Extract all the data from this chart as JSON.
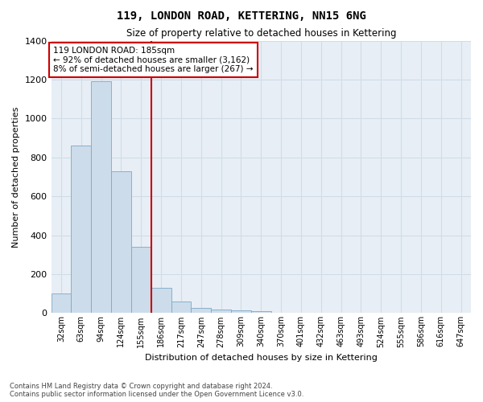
{
  "title": "119, LONDON ROAD, KETTERING, NN15 6NG",
  "subtitle": "Size of property relative to detached houses in Kettering",
  "xlabel": "Distribution of detached houses by size in Kettering",
  "ylabel": "Number of detached properties",
  "categories": [
    "32sqm",
    "63sqm",
    "94sqm",
    "124sqm",
    "155sqm",
    "186sqm",
    "217sqm",
    "247sqm",
    "278sqm",
    "309sqm",
    "340sqm",
    "370sqm",
    "401sqm",
    "432sqm",
    "463sqm",
    "493sqm",
    "524sqm",
    "555sqm",
    "586sqm",
    "616sqm",
    "647sqm"
  ],
  "values": [
    100,
    860,
    1190,
    730,
    340,
    130,
    60,
    28,
    20,
    15,
    10,
    0,
    0,
    0,
    0,
    0,
    0,
    0,
    0,
    0,
    0
  ],
  "bar_color": "#ccdcea",
  "bar_edge_color": "#7aaac8",
  "annotation_text": "119 LONDON ROAD: 185sqm\n← 92% of detached houses are smaller (3,162)\n8% of semi-detached houses are larger (267) →",
  "annotation_box_color": "#ffffff",
  "annotation_box_edge_color": "#cc0000",
  "annotation_text_color": "#000000",
  "property_line_color": "#cc0000",
  "ylim": [
    0,
    1400
  ],
  "yticks": [
    0,
    200,
    400,
    600,
    800,
    1000,
    1200,
    1400
  ],
  "grid_color": "#d0dce8",
  "background_color": "#e8eef5",
  "footer_line1": "Contains HM Land Registry data © Crown copyright and database right 2024.",
  "footer_line2": "Contains public sector information licensed under the Open Government Licence v3.0."
}
